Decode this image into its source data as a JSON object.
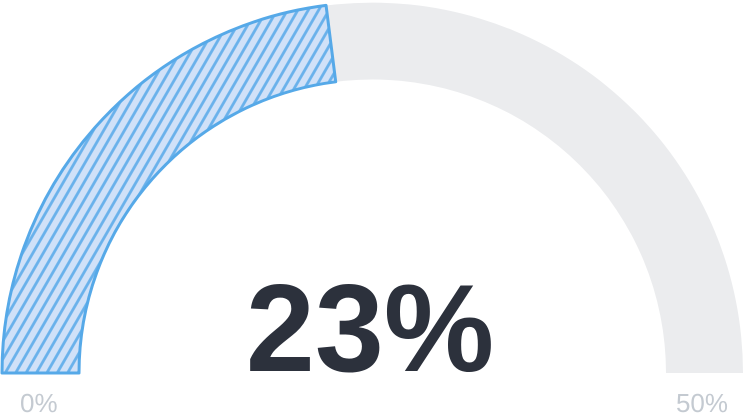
{
  "chart_data": {
    "type": "gauge",
    "value": 23,
    "min": 0,
    "max": 50,
    "value_label": "23%",
    "min_tick_label": "0%",
    "max_tick_label": "50%",
    "gauge_span_degrees": 180,
    "segment_pattern": "diagonal-hatch-stripes",
    "legend": "none",
    "colors": {
      "segment_base": "#d0e1f8",
      "segment_stripe": "#69b1eb",
      "segment_border": "#56a9e8",
      "track": "#ebecee",
      "value_text": "#2c313c",
      "tick_text": "#c4cad1"
    }
  }
}
